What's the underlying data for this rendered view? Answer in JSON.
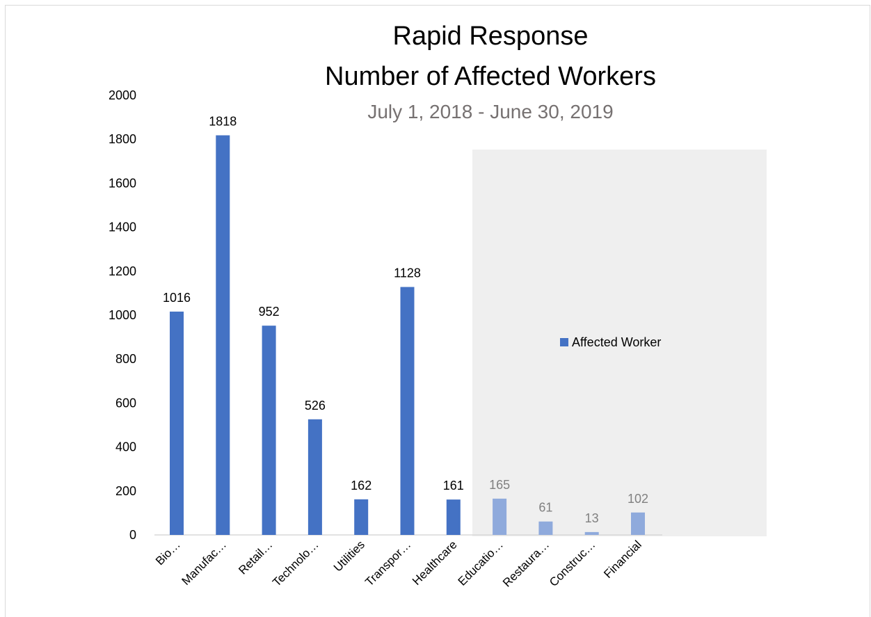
{
  "chart_data": {
    "type": "bar",
    "title": "Rapid Response",
    "title_line2": "Number of Affected Workers",
    "subtitle": "July 1, 2018 - June 30, 2019",
    "categories": [
      "Bio…",
      "Manufac…",
      "Retail…",
      "Technolo…",
      "Utilities",
      "Transpor…",
      "Healthcare",
      "Educatio…",
      "Restaura…",
      "Construc…",
      "Financial"
    ],
    "series": [
      {
        "name": "Affected Worker",
        "values": [
          1016,
          1818,
          952,
          526,
          162,
          1128,
          161,
          165,
          61,
          13,
          102
        ]
      }
    ],
    "ylim": [
      0,
      2000
    ],
    "yticks": [
      0,
      200,
      400,
      600,
      800,
      1000,
      1200,
      1400,
      1600,
      1800,
      2000
    ],
    "grid": false,
    "legend_position": "right, inside shaded panel",
    "colors": {
      "bar": "#4472c4",
      "bar_faded": "#8faadc",
      "panel_overlay": "#efefef",
      "axis": "#d9d9d9",
      "subtitle": "#767171",
      "faded_label": "#808080"
    },
    "faded_from_index": 7
  }
}
